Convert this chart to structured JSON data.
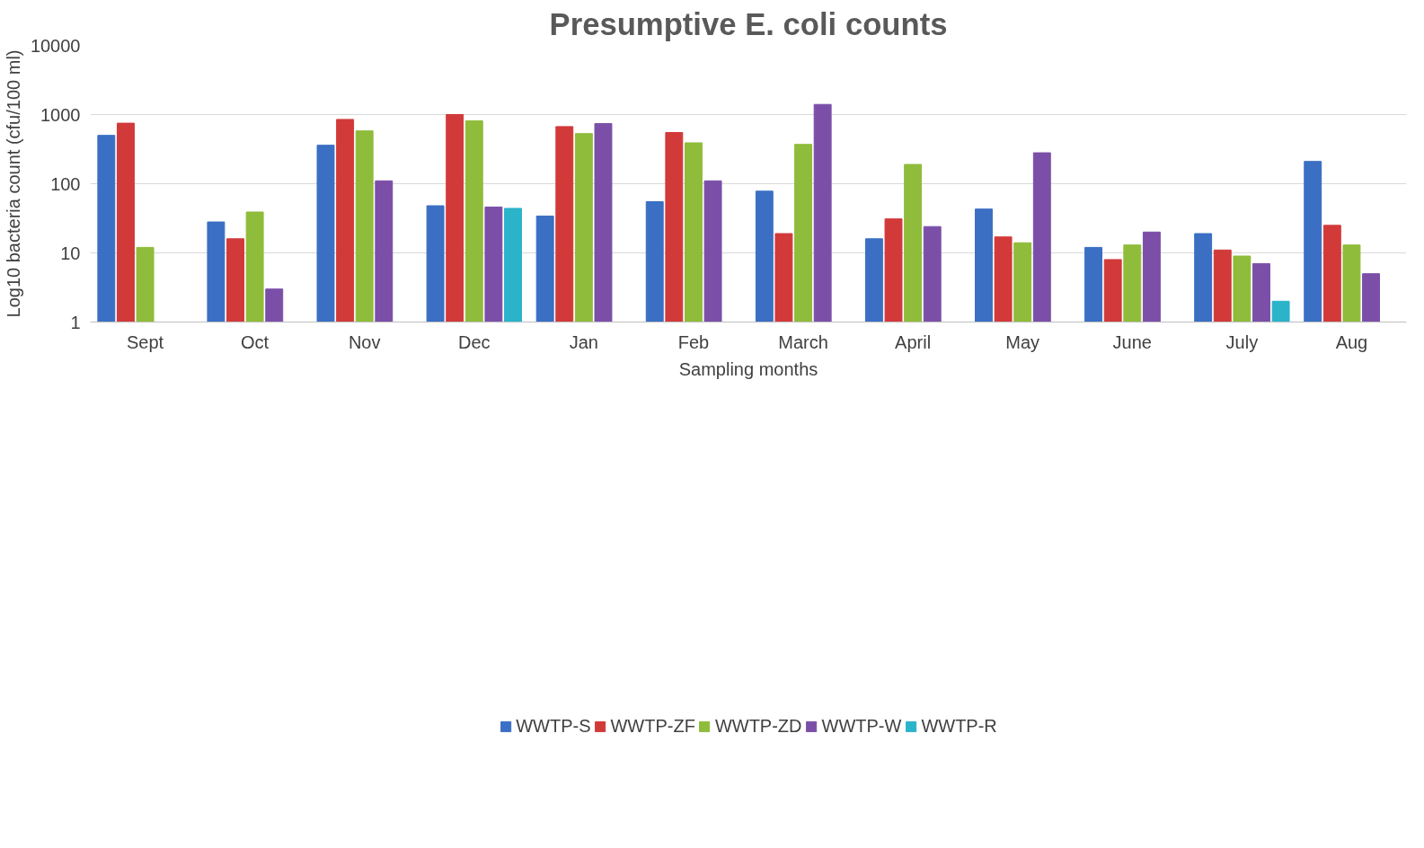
{
  "chart_data": {
    "type": "bar",
    "title": "Presumptive E. coli counts",
    "xlabel": "Sampling months",
    "ylabel": "Log10 bacteria count (cfu/100 ml)",
    "categories": [
      "Sept",
      "Oct",
      "Nov",
      "Dec",
      "Jan",
      "Feb",
      "March",
      "April",
      "May",
      "June",
      "July",
      "Aug"
    ],
    "series": [
      {
        "name": "WWTP-S",
        "color": "#3a6fc4",
        "values": [
          500,
          28,
          360,
          48,
          34,
          55,
          78,
          16,
          43,
          12,
          19,
          210
        ]
      },
      {
        "name": "WWTP-ZF",
        "color": "#d23a3a",
        "values": [
          750,
          16,
          850,
          1000,
          670,
          550,
          19,
          31,
          17,
          8,
          11,
          25
        ]
      },
      {
        "name": "WWTP-ZD",
        "color": "#8fbc3a",
        "values": [
          12,
          39,
          580,
          810,
          530,
          390,
          370,
          190,
          14,
          13,
          9,
          13
        ]
      },
      {
        "name": "WWTP-W",
        "color": "#7b4fa8",
        "values": [
          null,
          3,
          110,
          46,
          740,
          110,
          1400,
          24,
          280,
          20,
          7,
          5
        ]
      },
      {
        "name": "WWTP-R",
        "color": "#2bb3c9",
        "values": [
          null,
          null,
          null,
          44,
          null,
          null,
          null,
          null,
          null,
          null,
          2,
          null
        ]
      }
    ],
    "log": true,
    "ylim": [
      1,
      10000
    ],
    "yticks": [
      1,
      10,
      100,
      1000,
      10000
    ],
    "grid": "y",
    "legend": "bottom"
  }
}
